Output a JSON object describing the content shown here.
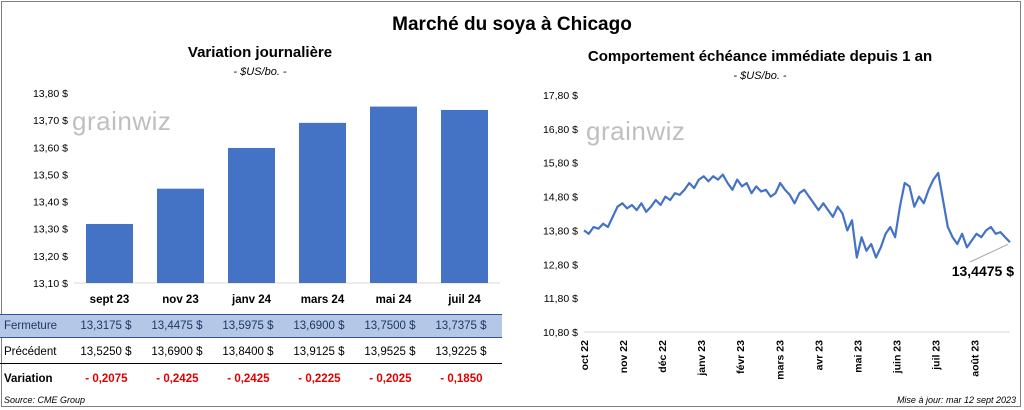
{
  "title": "Marché du soya à Chicago",
  "left": {
    "title": "Variation journalière",
    "unit": "- $US/bo. -",
    "watermark": "grainwiz"
  },
  "right": {
    "title": "Comportement échéance immédiate depuis 1 an",
    "unit": "- $US/bo. -",
    "watermark": "grainwiz",
    "last_label": "13,4475 $"
  },
  "table": {
    "rows": [
      {
        "label": "Fermeture",
        "values": [
          "13,3175",
          "13,4475",
          "13,5975",
          "13,6900",
          "13,7500",
          "13,7375"
        ],
        "suffix": "$"
      },
      {
        "label": "Précédent",
        "values": [
          "13,5250",
          "13,6900",
          "13,8400",
          "13,9125",
          "13,9525",
          "13,9225"
        ],
        "suffix": "$"
      },
      {
        "label": "Variation",
        "values": [
          "- 0,2075",
          "- 0,2425",
          "- 0,2425",
          "- 0,2225",
          "- 0,2025",
          "- 0,1850"
        ],
        "suffix": ""
      }
    ]
  },
  "footer": {
    "source": "Source: CME Group",
    "update": "Mise à jour: mar 12 sept 2023"
  },
  "colors": {
    "bar": "#4472c4",
    "line": "#4472c4",
    "close_row": "#b4c7e7",
    "negative": "#e00000"
  },
  "chart_data": [
    {
      "type": "bar",
      "title": "Variation journalière",
      "categories": [
        "sept 23",
        "nov 23",
        "janv 24",
        "mars 24",
        "mai 24",
        "juil 24"
      ],
      "values": [
        13.3175,
        13.4475,
        13.5975,
        13.69,
        13.75,
        13.7375
      ],
      "yticks": [
        "13,10 $",
        "13,20 $",
        "13,30 $",
        "13,40 $",
        "13,50 $",
        "13,60 $",
        "13,70 $",
        "13,80 $"
      ],
      "ylim": [
        13.1,
        13.8
      ],
      "grid": false
    },
    {
      "type": "line",
      "title": "Comportement échéance immédiate depuis 1 an",
      "xticks": [
        "oct 22",
        "nov 22",
        "déc 22",
        "janv 23",
        "févr 23",
        "mars 23",
        "avr 23",
        "mai 23",
        "juin 23",
        "juil 23",
        "août 23"
      ],
      "yticks": [
        "10,80 $",
        "11,80 $",
        "12,80 $",
        "13,80 $",
        "14,80 $",
        "15,80 $",
        "16,80 $",
        "17,80 $"
      ],
      "ylim": [
        10.8,
        17.8
      ],
      "grid": false,
      "series": [
        {
          "values": [
            13.8,
            13.7,
            13.9,
            13.85,
            14.0,
            13.9,
            14.2,
            14.5,
            14.6,
            14.45,
            14.55,
            14.4,
            14.6,
            14.35,
            14.5,
            14.7,
            14.55,
            14.8,
            14.7,
            14.9,
            14.85,
            15.0,
            15.2,
            15.05,
            15.3,
            15.4,
            15.25,
            15.4,
            15.3,
            15.45,
            15.2,
            15.0,
            15.3,
            15.1,
            15.2,
            14.9,
            15.1,
            14.95,
            15.0,
            14.8,
            14.9,
            15.2,
            15.0,
            14.85,
            14.6,
            14.9,
            15.0,
            14.8,
            14.6,
            14.4,
            14.6,
            14.4,
            14.2,
            14.5,
            14.3,
            13.8,
            14.1,
            13.0,
            13.6,
            13.2,
            13.4,
            13.0,
            13.3,
            13.7,
            13.9,
            13.6,
            14.5,
            15.2,
            15.1,
            14.5,
            14.8,
            14.6,
            15.0,
            15.3,
            15.5,
            14.7,
            13.9,
            13.6,
            13.4,
            13.7,
            13.3,
            13.5,
            13.7,
            13.6,
            13.8,
            13.9,
            13.7,
            13.75,
            13.6,
            13.45
          ]
        }
      ]
    }
  ]
}
